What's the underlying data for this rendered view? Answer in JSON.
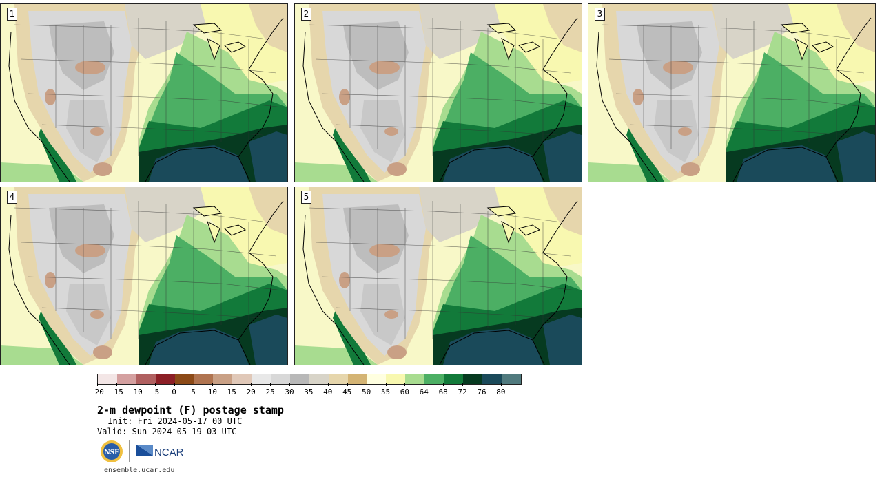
{
  "panels": [
    {
      "label": "1"
    },
    {
      "label": "2"
    },
    {
      "label": "3"
    },
    {
      "label": "4"
    },
    {
      "label": "5"
    }
  ],
  "colorbar": {
    "colors": [
      "#f3e6e6",
      "#d4a0a0",
      "#b06060",
      "#8c1f26",
      "#8c4a17",
      "#b07450",
      "#c9a085",
      "#e0c8b8",
      "#e8e8e8",
      "#d8d8d8",
      "#b8b8b8",
      "#d8d4c8",
      "#e6d6ac",
      "#d4b474",
      "#ffffe0",
      "#f8f8b0",
      "#a8dc90",
      "#4caf64",
      "#127a3a",
      "#063a20",
      "#1a4a5a",
      "#507a7e"
    ],
    "tick_labels": [
      "−20",
      "−15",
      "−10",
      "−5",
      "0",
      "5",
      "10",
      "15",
      "20",
      "25",
      "30",
      "35",
      "40",
      "45",
      "50",
      "55",
      "60",
      "64",
      "68",
      "72",
      "76",
      "80"
    ]
  },
  "map_colors": {
    "arid_tan": "#d4b474",
    "light_tan": "#e6d6ac",
    "gray_high": "#c8c8c8",
    "gray_low": "#e2e2e2",
    "dry_brown": "#c9a085",
    "moist_yellow": "#f8f8b0",
    "green_60": "#a8dc90",
    "green_64": "#4caf64",
    "green_68": "#127a3a",
    "green_72": "#063a20",
    "gulf": "#1a4a5a"
  },
  "title": "2-m dewpoint (F) postage stamp",
  "init": " Init: Fri 2024-05-17 00 UTC",
  "valid": "Valid: Sun 2024-05-19 03 UTC",
  "logos": {
    "nsf": "NSF",
    "ncar": "NCAR"
  },
  "site": "ensemble.ucar.edu"
}
